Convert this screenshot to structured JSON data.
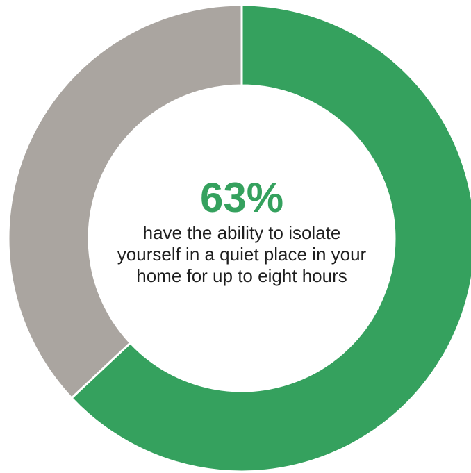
{
  "chart_data": {
    "type": "pie",
    "style": "donut",
    "slices": [
      {
        "value": 63,
        "color": "#35a15e"
      },
      {
        "value": 37,
        "color": "#aaa5a0"
      }
    ],
    "center_value": "63%",
    "center_caption": "have the ability to isolate yourself in a quiet place in your home for up to eight hours",
    "legend": "none",
    "start_angle": "top",
    "direction": "clockwise"
  }
}
